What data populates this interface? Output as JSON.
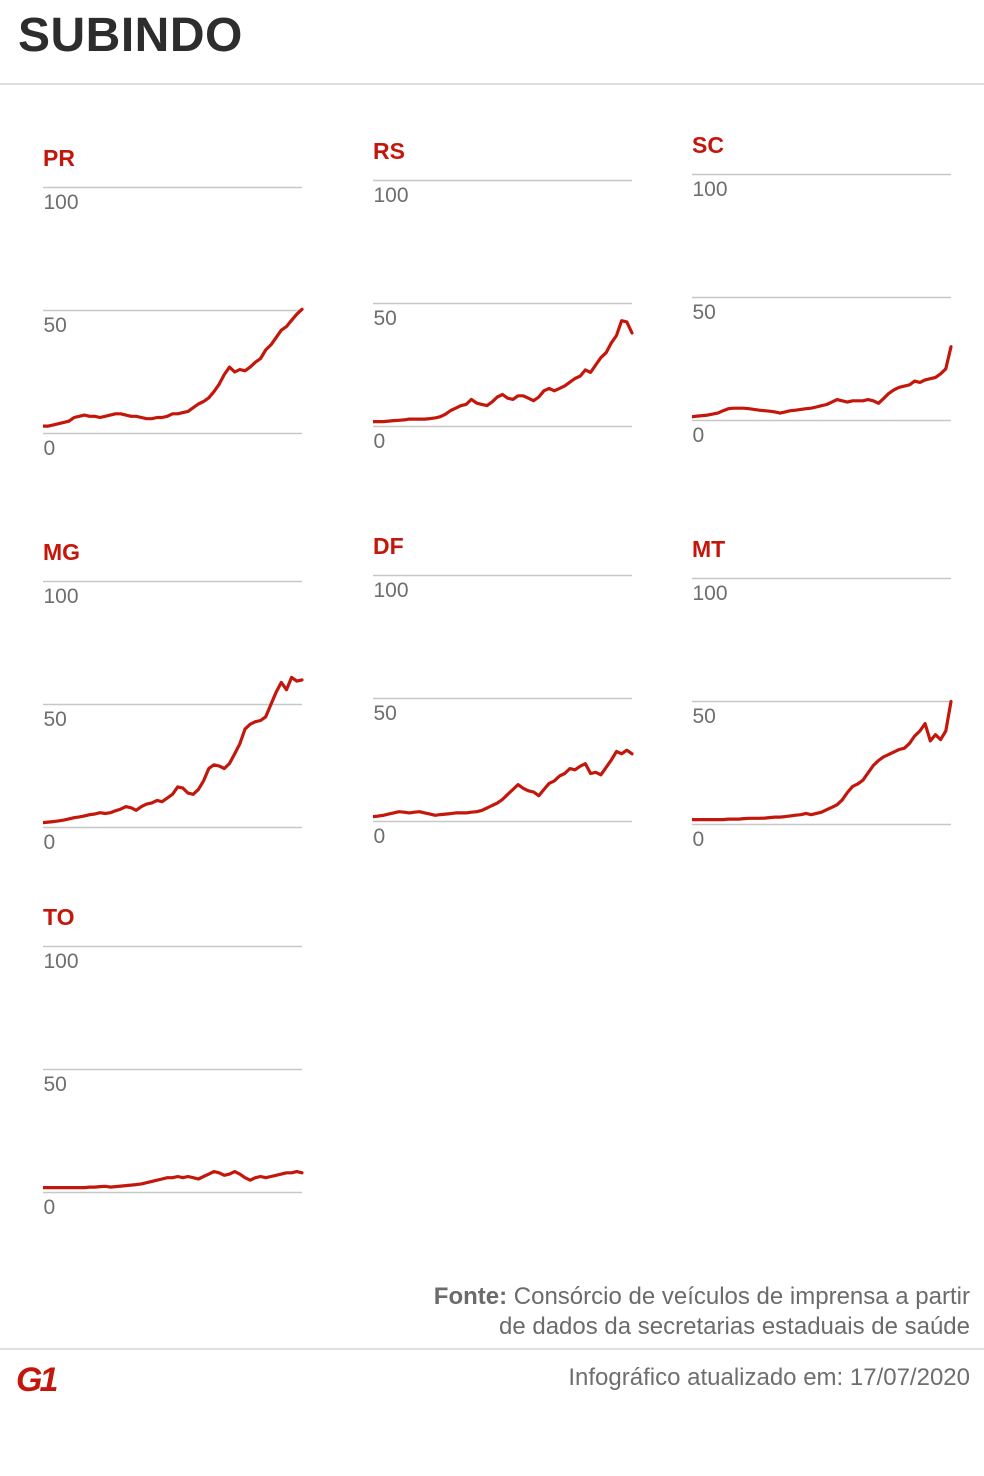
{
  "header": {
    "title": "SUBINDO"
  },
  "footer": {
    "source_label": "Fonte:",
    "source_line1": "Consórcio de veículos de imprensa a partir",
    "source_line2": "de dados da secretarias estaduais de saúde",
    "updated_text": "Infográfico atualizado em: 17/07/2020",
    "logo_text": "G1"
  },
  "colors": {
    "accent_red": "#c4170c",
    "grid_gray": "#c7c7c7",
    "tick_label_gray": "#6e6e6e",
    "title_dark": "#2d2d2d",
    "divider_gray": "#e0e0e0",
    "footer_gray": "#6b6b6b"
  },
  "chart_data": {
    "type": "line",
    "title": "SUBINDO",
    "xlabel": "",
    "ylabel": "",
    "ylim": [
      0,
      100
    ],
    "yticks": [
      0,
      50,
      100
    ],
    "grid": "horizontal",
    "legend": "none",
    "line_color": "#c4170c",
    "charts": [
      {
        "id": "pr",
        "label": "PR",
        "values": [
          3,
          3,
          3.5,
          4,
          4.5,
          5,
          6.5,
          7,
          7.5,
          7,
          7,
          6.5,
          7,
          7.5,
          8,
          8,
          7.5,
          7,
          7,
          6.5,
          6,
          6,
          6.5,
          6.5,
          7,
          8,
          8,
          8.5,
          9,
          10.5,
          12,
          13,
          14.5,
          17,
          20,
          24,
          27,
          25,
          26,
          25.5,
          27,
          29,
          30.5,
          34,
          36,
          39,
          42,
          43.5,
          46,
          48.5,
          50.5
        ]
      },
      {
        "id": "rs",
        "label": "RS",
        "values": [
          2,
          2,
          2,
          2.2,
          2.4,
          2.5,
          2.7,
          3,
          3,
          3,
          3,
          3.2,
          3.5,
          4,
          5,
          6.5,
          7.5,
          8.5,
          9,
          11,
          9.5,
          9,
          8.5,
          10,
          12,
          13,
          11.5,
          11,
          12.5,
          12.5,
          11.5,
          10.5,
          12,
          14.5,
          15.5,
          14.5,
          15.5,
          16.5,
          18,
          19.5,
          20.5,
          23,
          22,
          25,
          28,
          30,
          34,
          37,
          43,
          42.5,
          38
        ]
      },
      {
        "id": "sc",
        "label": "SC",
        "values": [
          1.5,
          1.8,
          2,
          2.2,
          2.6,
          3,
          4,
          4.8,
          5,
          5,
          5,
          4.8,
          4.5,
          4.2,
          4,
          3.8,
          3.5,
          3,
          3.5,
          4,
          4.2,
          4.5,
          4.8,
          5,
          5.5,
          6,
          6.5,
          7.5,
          8.5,
          8,
          7.5,
          8,
          8,
          8,
          8.5,
          8,
          7,
          9,
          11,
          12.5,
          13.5,
          14,
          14.5,
          16,
          15.5,
          16.5,
          17,
          17.5,
          19,
          21,
          30
        ]
      },
      {
        "id": "mg",
        "label": "MG",
        "values": [
          2,
          2.2,
          2.4,
          2.7,
          3,
          3.5,
          4,
          4.3,
          4.7,
          5.2,
          5.5,
          6,
          5.7,
          6,
          6.8,
          7.5,
          8.5,
          8,
          7,
          8.5,
          9.5,
          10,
          11,
          10.5,
          12,
          13.5,
          16.5,
          16,
          14,
          13.5,
          15.5,
          19,
          24,
          25.5,
          25,
          24,
          26,
          30,
          34,
          40,
          42,
          43,
          43.5,
          45,
          50,
          55,
          59,
          56,
          61,
          59.5,
          60
        ]
      },
      {
        "id": "df",
        "label": "DF",
        "values": [
          2,
          2.2,
          2.5,
          3,
          3.5,
          4,
          3.8,
          3.5,
          3.8,
          4,
          3.5,
          3,
          2.5,
          2.8,
          3,
          3.2,
          3.5,
          3.5,
          3.5,
          3.8,
          4,
          4.5,
          5.5,
          6.5,
          7.5,
          9,
          11,
          13,
          15,
          13.5,
          12.5,
          12,
          10.5,
          13,
          15.5,
          16.5,
          18.5,
          19.5,
          21.5,
          21,
          22.5,
          23.5,
          19.5,
          20,
          19,
          22,
          25,
          28.5,
          27.5,
          29,
          27.5
        ]
      },
      {
        "id": "mt",
        "label": "MT",
        "values": [
          2,
          2,
          2,
          2,
          2,
          2,
          2,
          2.2,
          2.2,
          2.2,
          2.4,
          2.5,
          2.5,
          2.5,
          2.6,
          2.8,
          3,
          3,
          3.2,
          3.5,
          3.8,
          4,
          4.5,
          4,
          4.5,
          5,
          6,
          7,
          8,
          10,
          13,
          15.5,
          16.5,
          18,
          21,
          24,
          26,
          27.5,
          28.5,
          29.5,
          30.5,
          31,
          33,
          36,
          38,
          41,
          34,
          36.5,
          34.5,
          38,
          50
        ]
      },
      {
        "id": "to",
        "label": "TO",
        "values": [
          2,
          2,
          2,
          2,
          2,
          2,
          2,
          2,
          2,
          2.2,
          2.2,
          2.4,
          2.5,
          2.2,
          2.4,
          2.6,
          2.8,
          3,
          3.2,
          3.5,
          4,
          4.5,
          5,
          5.5,
          6,
          6,
          6.5,
          6,
          6.5,
          6,
          5.5,
          6.5,
          7.5,
          8.5,
          8,
          7,
          7.5,
          8.5,
          7.5,
          6,
          5,
          6,
          6.5,
          6,
          6.5,
          7,
          7.5,
          8,
          8,
          8.5,
          8
        ]
      }
    ]
  }
}
